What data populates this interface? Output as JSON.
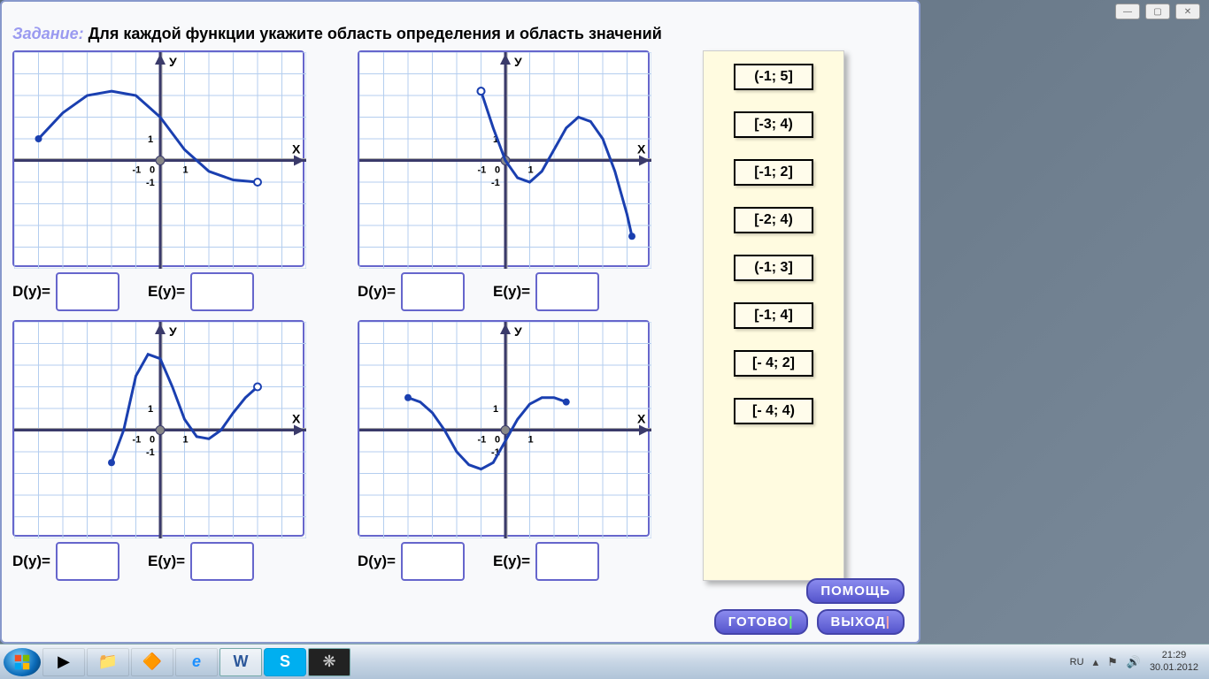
{
  "title": {
    "prefix": "Задание:",
    "text": "Для каждой функции укажите область определения и область значений"
  },
  "labels": {
    "d": "D(y)=",
    "e": "E(y)="
  },
  "choices": [
    "(-1; 5]",
    "[-3; 4)",
    "[-1; 2]",
    "[-2; 4)",
    "(-1; 3]",
    "[-1; 4]",
    "[- 4; 2]",
    "[- 4; 4)"
  ],
  "buttons": {
    "help": "ПОМОЩЬ",
    "done": "ГОТОВО",
    "exit": "ВЫХОД"
  },
  "chart_style": {
    "bg": "#ffffff",
    "grid_color": "#b4ceef",
    "axis_color": "#3a3a6a",
    "axis_width": 3,
    "curve_color": "#1a3fb0",
    "curve_width": 3,
    "xlim": [
      -6,
      6
    ],
    "ylim": [
      -5,
      5
    ],
    "tick_font": 11,
    "axis_labels": {
      "x": "X",
      "y": "У"
    },
    "tick_labels": [
      "-1",
      "1"
    ]
  },
  "graphs": [
    {
      "id": "g1",
      "curve": [
        [
          -5,
          1
        ],
        [
          -4,
          2.2
        ],
        [
          -3,
          3
        ],
        [
          -2,
          3.2
        ],
        [
          -1,
          3
        ],
        [
          0,
          2
        ],
        [
          1,
          0.5
        ],
        [
          2,
          -0.5
        ],
        [
          3,
          -0.9
        ],
        [
          4,
          -1
        ]
      ],
      "endpoints": {
        "start_closed": true,
        "end_open": true
      }
    },
    {
      "id": "g2",
      "open_point": [
        -1,
        3.2
      ],
      "curve": [
        [
          -1,
          3.2
        ],
        [
          -0.5,
          1.5
        ],
        [
          0,
          0
        ],
        [
          0.5,
          -0.8
        ],
        [
          1,
          -1
        ],
        [
          1.5,
          -0.5
        ],
        [
          2,
          0.5
        ],
        [
          2.5,
          1.5
        ],
        [
          3,
          2
        ],
        [
          3.5,
          1.8
        ],
        [
          4,
          1
        ],
        [
          4.5,
          -0.5
        ],
        [
          5,
          -2.5
        ],
        [
          5.2,
          -3.5
        ]
      ],
      "endpoints": {
        "start_open": true,
        "end_closed": true
      }
    },
    {
      "id": "g3",
      "curve": [
        [
          -2,
          -1.5
        ],
        [
          -1.5,
          0
        ],
        [
          -1,
          2.5
        ],
        [
          -0.5,
          3.5
        ],
        [
          0,
          3.3
        ],
        [
          0.5,
          2
        ],
        [
          1,
          0.5
        ],
        [
          1.5,
          -0.3
        ],
        [
          2,
          -0.4
        ],
        [
          2.5,
          0
        ],
        [
          3,
          0.8
        ],
        [
          3.5,
          1.5
        ],
        [
          4,
          2
        ]
      ],
      "endpoints": {
        "start_closed": true,
        "end_open": true
      }
    },
    {
      "id": "g4",
      "curve": [
        [
          -4,
          1.5
        ],
        [
          -3.5,
          1.3
        ],
        [
          -3,
          0.8
        ],
        [
          -2.5,
          0
        ],
        [
          -2,
          -1
        ],
        [
          -1.5,
          -1.6
        ],
        [
          -1,
          -1.8
        ],
        [
          -0.5,
          -1.5
        ],
        [
          0,
          -0.5
        ],
        [
          0.5,
          0.5
        ],
        [
          1,
          1.2
        ],
        [
          1.5,
          1.5
        ],
        [
          2,
          1.5
        ],
        [
          2.5,
          1.3
        ]
      ],
      "endpoints": {
        "start_closed": true,
        "end_closed": true
      }
    }
  ],
  "taskbar": {
    "lang": "RU",
    "time": "21:29",
    "date": "30.01.2012"
  }
}
